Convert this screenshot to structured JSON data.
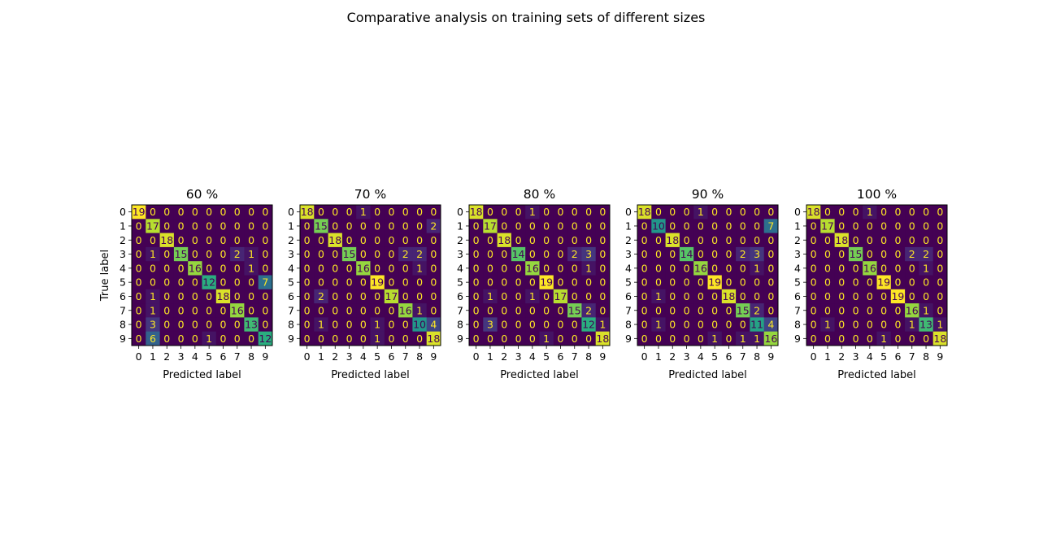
{
  "figure": {
    "title": "Comparative analysis on training sets of different sizes"
  },
  "chart_data": [
    {
      "type": "heatmap",
      "title": "60 %",
      "xlabel": "Predicted label",
      "ylabel": "True label",
      "x_ticks": [
        "0",
        "1",
        "2",
        "3",
        "4",
        "5",
        "6",
        "7",
        "8",
        "9"
      ],
      "y_ticks": [
        "0",
        "1",
        "2",
        "3",
        "4",
        "5",
        "6",
        "7",
        "8",
        "9"
      ],
      "vmin": 0,
      "vmax": 19,
      "matrix": [
        [
          19,
          0,
          0,
          0,
          0,
          0,
          0,
          0,
          0,
          0
        ],
        [
          0,
          17,
          0,
          0,
          0,
          0,
          0,
          0,
          0,
          0
        ],
        [
          0,
          0,
          18,
          0,
          0,
          0,
          0,
          0,
          0,
          0
        ],
        [
          0,
          1,
          0,
          15,
          0,
          0,
          0,
          2,
          1,
          0
        ],
        [
          0,
          0,
          0,
          0,
          16,
          0,
          0,
          0,
          1,
          0
        ],
        [
          0,
          0,
          0,
          0,
          0,
          12,
          0,
          0,
          0,
          7
        ],
        [
          0,
          1,
          0,
          0,
          0,
          0,
          18,
          0,
          0,
          0
        ],
        [
          0,
          1,
          0,
          0,
          0,
          0,
          0,
          16,
          0,
          0
        ],
        [
          0,
          3,
          0,
          0,
          0,
          0,
          0,
          0,
          13,
          0
        ],
        [
          0,
          6,
          0,
          0,
          0,
          1,
          0,
          0,
          0,
          12
        ]
      ]
    },
    {
      "type": "heatmap",
      "title": "70 %",
      "xlabel": "Predicted label",
      "ylabel": "",
      "x_ticks": [
        "0",
        "1",
        "2",
        "3",
        "4",
        "5",
        "6",
        "7",
        "8",
        "9"
      ],
      "y_ticks": [
        "0",
        "1",
        "2",
        "3",
        "4",
        "5",
        "6",
        "7",
        "8",
        "9"
      ],
      "vmin": 0,
      "vmax": 19,
      "matrix": [
        [
          18,
          0,
          0,
          0,
          1,
          0,
          0,
          0,
          0,
          0
        ],
        [
          0,
          15,
          0,
          0,
          0,
          0,
          0,
          0,
          0,
          2
        ],
        [
          0,
          0,
          18,
          0,
          0,
          0,
          0,
          0,
          0,
          0
        ],
        [
          0,
          0,
          0,
          15,
          0,
          0,
          0,
          2,
          2,
          0
        ],
        [
          0,
          0,
          0,
          0,
          16,
          0,
          0,
          0,
          1,
          0
        ],
        [
          0,
          0,
          0,
          0,
          0,
          19,
          0,
          0,
          0,
          0
        ],
        [
          0,
          2,
          0,
          0,
          0,
          0,
          17,
          0,
          0,
          0
        ],
        [
          0,
          0,
          0,
          0,
          0,
          0,
          0,
          16,
          1,
          0
        ],
        [
          0,
          1,
          0,
          0,
          0,
          1,
          0,
          0,
          10,
          4
        ],
        [
          0,
          0,
          0,
          0,
          0,
          1,
          0,
          0,
          0,
          18
        ]
      ]
    },
    {
      "type": "heatmap",
      "title": "80 %",
      "xlabel": "Predicted label",
      "ylabel": "",
      "x_ticks": [
        "0",
        "1",
        "2",
        "3",
        "4",
        "5",
        "6",
        "7",
        "8",
        "9"
      ],
      "y_ticks": [
        "0",
        "1",
        "2",
        "3",
        "4",
        "5",
        "6",
        "7",
        "8",
        "9"
      ],
      "vmin": 0,
      "vmax": 19,
      "matrix": [
        [
          18,
          0,
          0,
          0,
          1,
          0,
          0,
          0,
          0,
          0
        ],
        [
          0,
          17,
          0,
          0,
          0,
          0,
          0,
          0,
          0,
          0
        ],
        [
          0,
          0,
          18,
          0,
          0,
          0,
          0,
          0,
          0,
          0
        ],
        [
          0,
          0,
          0,
          14,
          0,
          0,
          0,
          2,
          3,
          0
        ],
        [
          0,
          0,
          0,
          0,
          16,
          0,
          0,
          0,
          1,
          0
        ],
        [
          0,
          0,
          0,
          0,
          0,
          19,
          0,
          0,
          0,
          0
        ],
        [
          0,
          1,
          0,
          0,
          1,
          0,
          17,
          0,
          0,
          0
        ],
        [
          0,
          0,
          0,
          0,
          0,
          0,
          0,
          15,
          2,
          0
        ],
        [
          0,
          3,
          0,
          0,
          0,
          0,
          0,
          0,
          12,
          1
        ],
        [
          0,
          0,
          0,
          0,
          0,
          1,
          0,
          0,
          0,
          18
        ]
      ]
    },
    {
      "type": "heatmap",
      "title": "90 %",
      "xlabel": "Predicted label",
      "ylabel": "",
      "x_ticks": [
        "0",
        "1",
        "2",
        "3",
        "4",
        "5",
        "6",
        "7",
        "8",
        "9"
      ],
      "y_ticks": [
        "0",
        "1",
        "2",
        "3",
        "4",
        "5",
        "6",
        "7",
        "8",
        "9"
      ],
      "vmin": 0,
      "vmax": 19,
      "matrix": [
        [
          18,
          0,
          0,
          0,
          1,
          0,
          0,
          0,
          0,
          0
        ],
        [
          0,
          10,
          0,
          0,
          0,
          0,
          0,
          0,
          0,
          7
        ],
        [
          0,
          0,
          18,
          0,
          0,
          0,
          0,
          0,
          0,
          0
        ],
        [
          0,
          0,
          0,
          14,
          0,
          0,
          0,
          2,
          3,
          0
        ],
        [
          0,
          0,
          0,
          0,
          16,
          0,
          0,
          0,
          1,
          0
        ],
        [
          0,
          0,
          0,
          0,
          0,
          19,
          0,
          0,
          0,
          0
        ],
        [
          0,
          1,
          0,
          0,
          0,
          0,
          18,
          0,
          0,
          0
        ],
        [
          0,
          0,
          0,
          0,
          0,
          0,
          0,
          15,
          2,
          0
        ],
        [
          0,
          1,
          0,
          0,
          0,
          0,
          0,
          0,
          11,
          4
        ],
        [
          0,
          0,
          0,
          0,
          0,
          1,
          0,
          1,
          1,
          16
        ]
      ]
    },
    {
      "type": "heatmap",
      "title": "100 %",
      "xlabel": "Predicted label",
      "ylabel": "",
      "x_ticks": [
        "0",
        "1",
        "2",
        "3",
        "4",
        "5",
        "6",
        "7",
        "8",
        "9"
      ],
      "y_ticks": [
        "0",
        "1",
        "2",
        "3",
        "4",
        "5",
        "6",
        "7",
        "8",
        "9"
      ],
      "vmin": 0,
      "vmax": 19,
      "matrix": [
        [
          18,
          0,
          0,
          0,
          1,
          0,
          0,
          0,
          0,
          0
        ],
        [
          0,
          17,
          0,
          0,
          0,
          0,
          0,
          0,
          0,
          0
        ],
        [
          0,
          0,
          18,
          0,
          0,
          0,
          0,
          0,
          0,
          0
        ],
        [
          0,
          0,
          0,
          15,
          0,
          0,
          0,
          2,
          2,
          0
        ],
        [
          0,
          0,
          0,
          0,
          16,
          0,
          0,
          0,
          1,
          0
        ],
        [
          0,
          0,
          0,
          0,
          0,
          19,
          0,
          0,
          0,
          0
        ],
        [
          0,
          0,
          0,
          0,
          0,
          0,
          19,
          0,
          0,
          0
        ],
        [
          0,
          0,
          0,
          0,
          0,
          0,
          0,
          16,
          1,
          0
        ],
        [
          0,
          1,
          0,
          0,
          0,
          0,
          0,
          1,
          13,
          1
        ],
        [
          0,
          0,
          0,
          0,
          0,
          1,
          0,
          0,
          0,
          18
        ]
      ]
    }
  ]
}
